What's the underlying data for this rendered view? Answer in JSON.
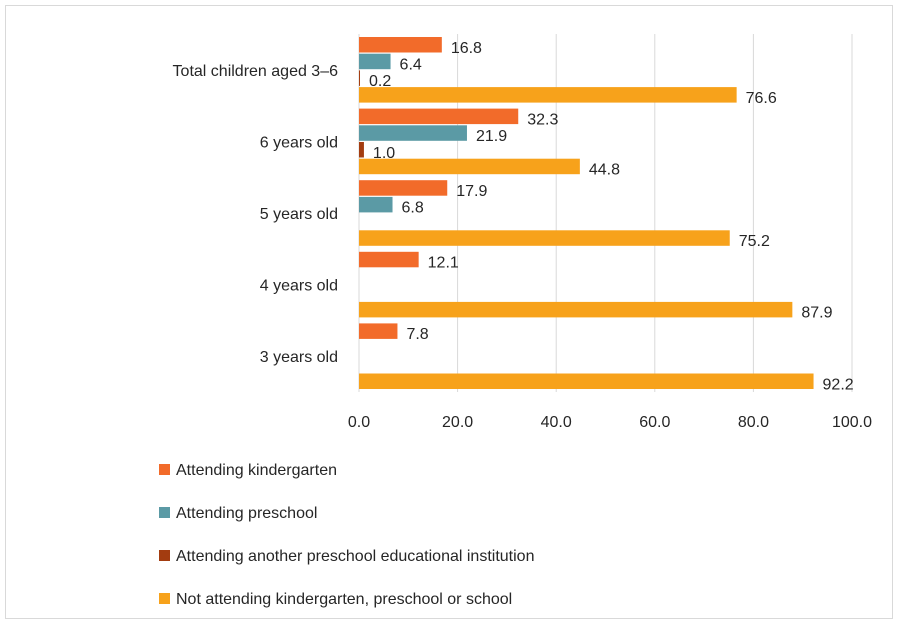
{
  "chart_data": {
    "type": "bar",
    "orientation": "horizontal",
    "categories": [
      "Total children aged 3–6",
      "6 years old",
      "5 years old",
      "4 years old",
      "3 years old"
    ],
    "series": [
      {
        "name": "Attending kindergarten",
        "color": "#f26b2a",
        "values": [
          16.8,
          32.3,
          17.9,
          12.1,
          7.8
        ]
      },
      {
        "name": "Attending preschool",
        "color": "#5b9aa5",
        "values": [
          6.4,
          21.9,
          6.8,
          null,
          null
        ]
      },
      {
        "name": "Attending another preschool educational institution",
        "color": "#a33c10",
        "values": [
          0.2,
          1.0,
          null,
          null,
          null
        ]
      },
      {
        "name": "Not attending kindergarten, preschool or school",
        "color": "#f7a21b",
        "values": [
          76.6,
          44.8,
          75.2,
          87.9,
          92.2
        ]
      }
    ],
    "xlim": [
      0,
      100
    ],
    "xticks": [
      "0.0",
      "20.0",
      "40.0",
      "60.0",
      "80.0",
      "100.0"
    ],
    "grid": true,
    "legend_position": "bottom"
  }
}
